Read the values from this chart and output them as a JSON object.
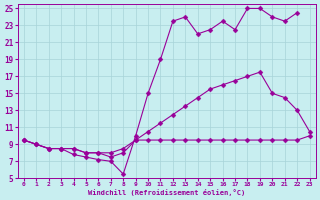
{
  "xlabel": "Windchill (Refroidissement éolien,°C)",
  "bg_color": "#c8eef0",
  "grid_color": "#a8d4d8",
  "line_color": "#990099",
  "xlim": [
    -0.5,
    23.5
  ],
  "ylim": [
    5,
    25.5
  ],
  "xticks": [
    0,
    1,
    2,
    3,
    4,
    5,
    6,
    7,
    8,
    9,
    10,
    11,
    12,
    13,
    14,
    15,
    16,
    17,
    18,
    19,
    20,
    21,
    22,
    23
  ],
  "yticks": [
    5,
    7,
    9,
    11,
    13,
    15,
    17,
    19,
    21,
    23,
    25
  ],
  "series": [
    {
      "x": [
        0,
        1,
        2,
        3,
        4,
        5,
        6,
        7,
        8,
        9,
        10,
        11,
        12,
        13,
        14,
        15,
        16,
        17,
        18,
        19,
        20,
        21,
        22,
        23
      ],
      "y": [
        9.5,
        9.0,
        8.5,
        8.5,
        8.5,
        8.0,
        8.0,
        8.0,
        8.5,
        9.5,
        9.5,
        9.5,
        9.5,
        9.5,
        9.5,
        9.5,
        9.5,
        9.5,
        9.5,
        9.5,
        9.5,
        9.5,
        9.5,
        10.0
      ]
    },
    {
      "x": [
        0,
        1,
        2,
        3,
        4,
        5,
        6,
        7,
        8,
        9,
        10,
        11,
        12,
        13,
        14,
        15,
        16,
        17,
        18,
        19,
        20,
        21,
        22,
        23
      ],
      "y": [
        9.5,
        9.0,
        8.5,
        8.5,
        8.5,
        8.0,
        8.0,
        7.5,
        8.0,
        9.5,
        10.5,
        11.5,
        12.5,
        13.5,
        14.5,
        15.5,
        16.0,
        16.5,
        17.0,
        17.5,
        15.0,
        14.5,
        13.0,
        10.5
      ]
    },
    {
      "x": [
        0,
        1,
        2,
        3,
        4,
        5,
        6,
        7,
        8,
        9,
        10,
        11,
        12,
        13,
        14,
        15,
        16,
        17,
        18,
        19,
        20,
        21,
        22
      ],
      "y": [
        9.5,
        9.0,
        8.5,
        8.5,
        7.8,
        7.5,
        7.2,
        7.0,
        5.5,
        10.0,
        15.0,
        19.0,
        23.5,
        24.0,
        22.0,
        22.5,
        23.5,
        22.5,
        25.0,
        25.0,
        24.0,
        23.5,
        24.5
      ]
    }
  ]
}
